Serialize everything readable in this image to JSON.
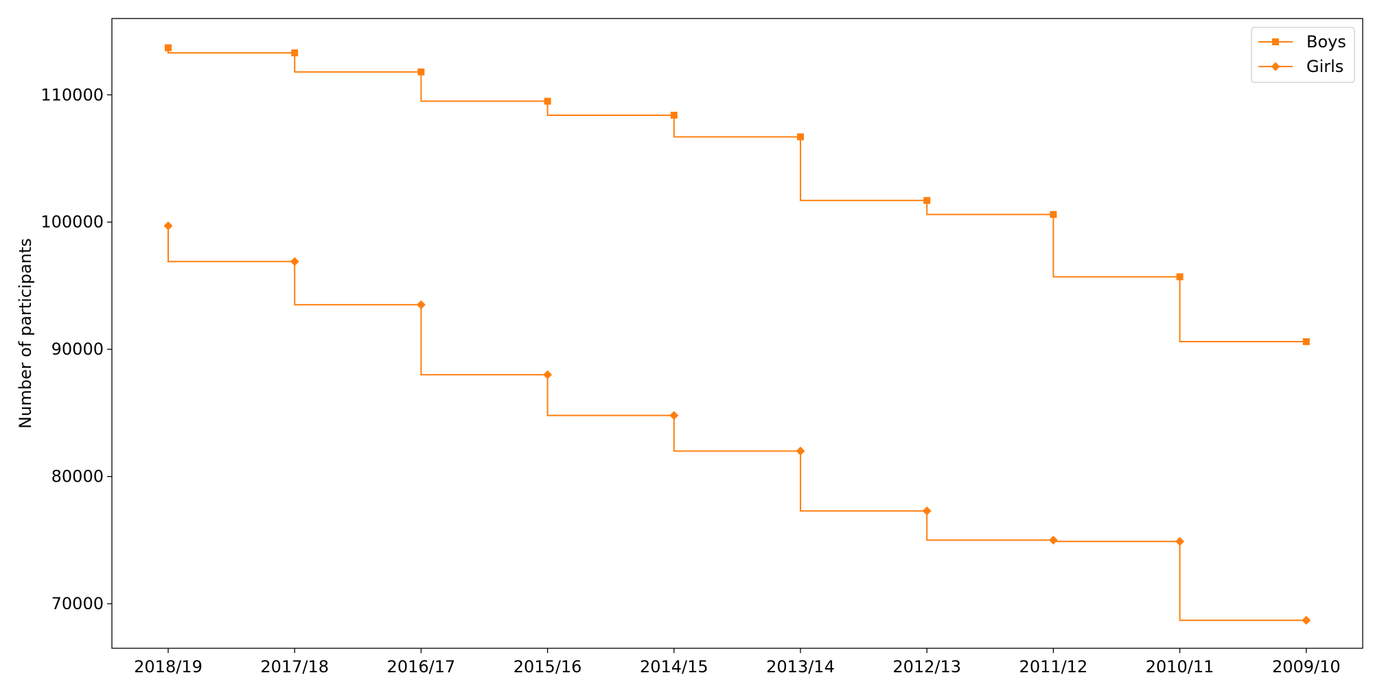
{
  "chart_data": {
    "type": "line",
    "step": "post",
    "categories": [
      "2018/19",
      "2017/18",
      "2016/17",
      "2015/16",
      "2014/15",
      "2013/14",
      "2012/13",
      "2011/12",
      "2010/11",
      "2009/10"
    ],
    "series": [
      {
        "name": "Boys",
        "marker": "square",
        "color": "#ff7f0e",
        "values": [
          113700,
          113300,
          111800,
          109500,
          108400,
          106700,
          101700,
          100600,
          95700,
          90600
        ]
      },
      {
        "name": "Girls",
        "marker": "diamond",
        "color": "#ff7f0e",
        "values": [
          99700,
          96900,
          93500,
          88000,
          84800,
          82000,
          77300,
          75000,
          74900,
          68700
        ]
      }
    ],
    "title": "",
    "xlabel": "",
    "ylabel": "Number of participants",
    "ylim": [
      66500,
      116000
    ],
    "yticks": [
      70000,
      80000,
      90000,
      100000,
      110000
    ],
    "ytick_labels": [
      "70000",
      "80000",
      "90000",
      "100000",
      "110000"
    ],
    "grid": false,
    "legend_position": "top-right"
  }
}
